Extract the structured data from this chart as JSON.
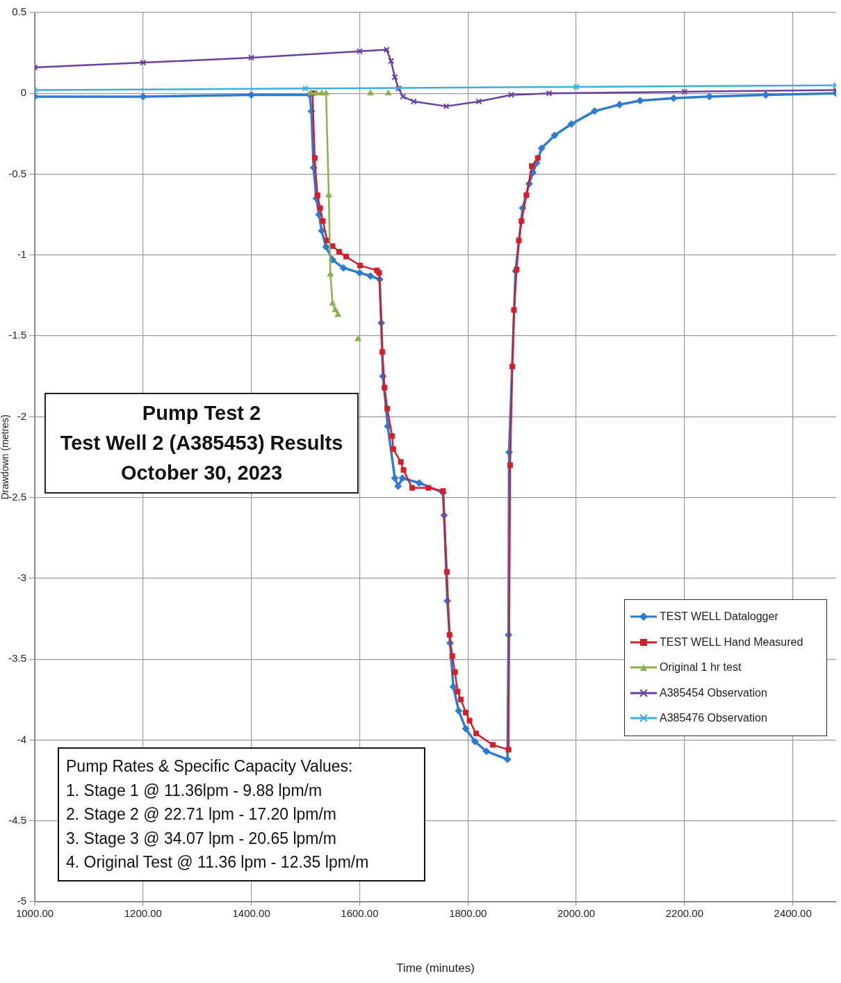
{
  "chart_data": {
    "type": "line",
    "title": "Pump Test 2\nTest Well 2 (A385453) Results\nOctober 30, 2023",
    "xlabel": "Time (minutes)",
    "ylabel": "Drawdown (metres)",
    "annotations": [
      "Pump Rates & Specific Capacity Values:",
      "1. Stage 1 @ 11.36lpm - 9.88 lpm/m",
      "2. Stage 2 @ 22.71 lpm - 17.20 lpm/m",
      "3. Stage 3 @ 34.07 lpm - 20.65 lpm/m",
      "4. Original Test @ 11.36 lpm - 12.35 lpm/m"
    ],
    "xlim": [
      1000,
      2480
    ],
    "ylim": [
      -5,
      0.5
    ],
    "xticks": [
      {
        "value": 1000,
        "label": "1000.00"
      },
      {
        "value": 1200,
        "label": "1200.00"
      },
      {
        "value": 1400,
        "label": "1400.00"
      },
      {
        "value": 1600,
        "label": "1600.00"
      },
      {
        "value": 1800,
        "label": "1800.00"
      },
      {
        "value": 2000,
        "label": "2000.00"
      },
      {
        "value": 2200,
        "label": "2200.00"
      },
      {
        "value": 2400,
        "label": "2400.00"
      }
    ],
    "yticks": [
      0.5,
      0,
      -0.5,
      -1,
      -1.5,
      -2,
      -2.5,
      -3,
      -3.5,
      -4,
      -4.5,
      -5
    ],
    "grid": true,
    "legend": "right",
    "series": [
      {
        "name": "TEST WELL Datalogger",
        "color": "#2e7bd0",
        "marker": "diamond",
        "x": [
          1000,
          1200,
          1400,
          1508,
          1511,
          1515,
          1520,
          1525,
          1530,
          1538,
          1550,
          1570,
          1600,
          1620,
          1637,
          1640,
          1643,
          1652,
          1665,
          1671,
          1679,
          1710,
          1754,
          1756,
          1762,
          1767,
          1773,
          1783,
          1796,
          1813,
          1834,
          1873,
          1875,
          1876,
          1888,
          1901,
          1913,
          1920,
          1927,
          1936,
          1960,
          1991,
          2034,
          2080,
          2118,
          2180,
          2246,
          2350,
          2480
        ],
        "values": [
          -0.02,
          -0.02,
          -0.01,
          -0.01,
          -0.11,
          -0.46,
          -0.65,
          -0.75,
          -0.85,
          -0.95,
          -1.03,
          -1.08,
          -1.11,
          -1.13,
          -1.15,
          -1.42,
          -1.75,
          -2.06,
          -2.38,
          -2.43,
          -2.38,
          -2.41,
          -2.47,
          -2.61,
          -3.14,
          -3.4,
          -3.67,
          -3.82,
          -3.93,
          -4.01,
          -4.07,
          -4.12,
          -3.35,
          -2.22,
          -1.1,
          -0.71,
          -0.56,
          -0.49,
          -0.43,
          -0.34,
          -0.26,
          -0.19,
          -0.11,
          -0.07,
          -0.045,
          -0.03,
          -0.02,
          -0.01,
          0
        ]
      },
      {
        "name": "TEST WELL Hand Measured",
        "color": "#d0202e",
        "marker": "square",
        "x": [
          1513,
          1517,
          1522,
          1527,
          1532,
          1540,
          1550,
          1562,
          1575,
          1601,
          1632,
          1636,
          1642,
          1646,
          1651,
          1660,
          1662,
          1676,
          1681,
          1697,
          1727,
          1754,
          1761,
          1766,
          1771,
          1776,
          1781,
          1787,
          1796,
          1803,
          1815,
          1846,
          1875,
          1878,
          1882,
          1885,
          1890,
          1894,
          1899,
          1908,
          1918,
          1929
        ],
        "values": [
          0,
          -0.4,
          -0.63,
          -0.71,
          -0.79,
          -0.91,
          -0.945,
          -0.98,
          -1.01,
          -1.065,
          -1.095,
          -1.11,
          -1.6,
          -1.82,
          -1.95,
          -2.12,
          -2.2,
          -2.28,
          -2.33,
          -2.44,
          -2.44,
          -2.46,
          -2.96,
          -3.35,
          -3.48,
          -3.58,
          -3.7,
          -3.75,
          -3.83,
          -3.88,
          -3.96,
          -4.03,
          -4.06,
          -2.3,
          -1.69,
          -1.34,
          -1.09,
          -0.91,
          -0.79,
          -0.63,
          -0.45,
          -0.4
        ]
      },
      {
        "name": "Original 1 hr test",
        "color": "#8cb050",
        "marker": "triangle",
        "x": [
          1510,
          1520,
          1530,
          1538,
          1543,
          1546,
          1550,
          1555,
          1560,
          1580,
          1597,
          1610,
          1620,
          1640,
          1653
        ],
        "values": [
          0,
          0,
          0,
          0,
          -0.63,
          -1.12,
          -1.3,
          -1.34,
          -1.37,
          null,
          -1.52,
          null,
          0,
          null,
          0
        ]
      },
      {
        "name": "A385454 Observation",
        "color": "#6a3fa0",
        "marker": "cross",
        "x": [
          1000,
          1200,
          1400,
          1600,
          1650,
          1658,
          1665,
          1672,
          1680,
          1700,
          1760,
          1820,
          1880,
          1950,
          2200,
          2480
        ],
        "values": [
          0.16,
          0.19,
          0.22,
          0.26,
          0.27,
          0.2,
          0.1,
          0.03,
          -0.02,
          -0.05,
          -0.08,
          -0.05,
          -0.01,
          0,
          0.01,
          0.02
        ]
      },
      {
        "name": "A385476 Observation",
        "color": "#38b0e0",
        "marker": "cross",
        "x": [
          1000,
          1500,
          2000,
          2480
        ],
        "values": [
          0.02,
          0.03,
          0.04,
          0.05
        ]
      }
    ]
  }
}
